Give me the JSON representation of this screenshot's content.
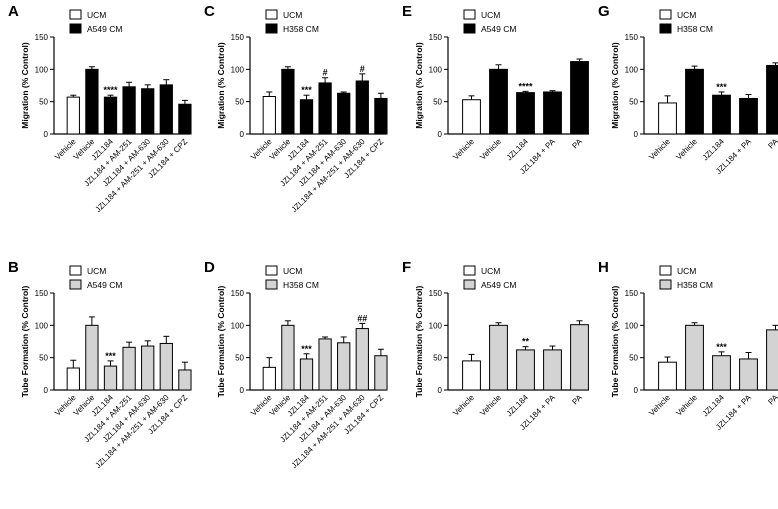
{
  "colors": {
    "ucm": "#ffffff",
    "cm_migration": "#000000",
    "cm_tube": "#d3d3d3",
    "axis": "#000000"
  },
  "chart_data": [
    {
      "panel": "A",
      "type": "bar",
      "ylabel": "Migration (% Control)",
      "ylim": [
        0,
        150
      ],
      "yticks": [
        0,
        50,
        100,
        150
      ],
      "legend": [
        "UCM",
        "A549 CM"
      ],
      "legend_position": "top-left",
      "categories": [
        "Vehicle",
        "Vehicle",
        "JZL184",
        "JZL184 + AM-251",
        "JZL184 + AM-630",
        "JZL184 + AM-251 + AM-630",
        "JZL184 + CPZ"
      ],
      "values": [
        57,
        100,
        57,
        73,
        70,
        76,
        46
      ],
      "errors": [
        3,
        4,
        3,
        7,
        6,
        8,
        6
      ],
      "groups": [
        "UCM",
        "CM",
        "CM",
        "CM",
        "CM",
        "CM",
        "CM"
      ],
      "annotations": [
        "",
        "",
        "****",
        "",
        "",
        "",
        ""
      ]
    },
    {
      "panel": "B",
      "type": "bar",
      "ylabel": "Tube Formation (% Control)",
      "ylim": [
        0,
        150
      ],
      "yticks": [
        0,
        50,
        100,
        150
      ],
      "legend": [
        "UCM",
        "A549 CM"
      ],
      "legend_position": "top-left",
      "categories": [
        "Vehicle",
        "Vehicle",
        "JZL184",
        "JZL184 + AM-251",
        "JZL184 + AM-630",
        "JZL184 + AM-251 + AM-630",
        "JZL184 + CPZ"
      ],
      "values": [
        34,
        100,
        37,
        66,
        68,
        72,
        31
      ],
      "errors": [
        12,
        13,
        8,
        8,
        8,
        11,
        12
      ],
      "groups": [
        "UCM",
        "CM",
        "CM",
        "CM",
        "CM",
        "CM",
        "CM"
      ],
      "annotations": [
        "",
        "",
        "***",
        "",
        "",
        "",
        ""
      ]
    },
    {
      "panel": "C",
      "type": "bar",
      "ylabel": "Migration (% Control)",
      "ylim": [
        0,
        150
      ],
      "yticks": [
        0,
        50,
        100,
        150
      ],
      "legend": [
        "UCM",
        "H358 CM"
      ],
      "legend_position": "top-left",
      "categories": [
        "Vehicle",
        "Vehicle",
        "JZL184",
        "JZL184 + AM-251",
        "JZL184 + AM-630",
        "JZL184 + AM-251 + AM-630",
        "JZL184 + CPZ"
      ],
      "values": [
        58,
        100,
        53,
        79,
        63,
        82,
        55
      ],
      "errors": [
        7,
        4,
        7,
        8,
        2,
        11,
        8
      ],
      "groups": [
        "UCM",
        "CM",
        "CM",
        "CM",
        "CM",
        "CM",
        "CM"
      ],
      "annotations": [
        "",
        "",
        "***",
        "#",
        "",
        "#",
        ""
      ]
    },
    {
      "panel": "D",
      "type": "bar",
      "ylabel": "Tube Formation (% Control)",
      "ylim": [
        0,
        150
      ],
      "yticks": [
        0,
        50,
        100,
        150
      ],
      "legend": [
        "UCM",
        "H358 CM"
      ],
      "legend_position": "top-left",
      "categories": [
        "Vehicle",
        "Vehicle",
        "JZL184",
        "JZL184 + AM-251",
        "JZL184 + AM-630",
        "JZL184 + AM-251 + AM-630",
        "JZL184 + CPZ"
      ],
      "values": [
        35,
        100,
        48,
        79,
        73,
        95,
        53
      ],
      "errors": [
        15,
        7,
        8,
        3,
        9,
        8,
        10
      ],
      "groups": [
        "UCM",
        "CM",
        "CM",
        "CM",
        "CM",
        "CM",
        "CM"
      ],
      "annotations": [
        "",
        "",
        "***",
        "",
        "",
        "##",
        ""
      ]
    },
    {
      "panel": "E",
      "type": "bar",
      "ylabel": "Migration (% Control)",
      "ylim": [
        0,
        150
      ],
      "yticks": [
        0,
        50,
        100,
        150
      ],
      "legend": [
        "UCM",
        "A549 CM"
      ],
      "legend_position": "top-left",
      "categories": [
        "Vehicle",
        "Vehicle",
        "JZL184",
        "JZL184 + PA",
        "PA"
      ],
      "values": [
        53,
        100,
        64,
        65,
        112
      ],
      "errors": [
        6,
        7,
        2,
        2,
        4
      ],
      "groups": [
        "UCM",
        "CM",
        "CM",
        "CM",
        "CM"
      ],
      "annotations": [
        "",
        "",
        "****",
        "",
        ""
      ]
    },
    {
      "panel": "F",
      "type": "bar",
      "ylabel": "Tube Formation (% Control)",
      "ylim": [
        0,
        150
      ],
      "yticks": [
        0,
        50,
        100,
        150
      ],
      "legend": [
        "UCM",
        "A549 CM"
      ],
      "legend_position": "top-left",
      "categories": [
        "Vehicle",
        "Vehicle",
        "JZL184",
        "JZL184 + PA",
        "PA"
      ],
      "values": [
        45,
        100,
        62,
        62,
        101
      ],
      "errors": [
        10,
        4,
        5,
        6,
        6
      ],
      "groups": [
        "UCM",
        "CM",
        "CM",
        "CM",
        "CM"
      ],
      "annotations": [
        "",
        "",
        "**",
        "",
        ""
      ]
    },
    {
      "panel": "G",
      "type": "bar",
      "ylabel": "Migration (% Control)",
      "ylim": [
        0,
        150
      ],
      "yticks": [
        0,
        50,
        100,
        150
      ],
      "legend": [
        "UCM",
        "H358 CM"
      ],
      "legend_position": "top-left",
      "categories": [
        "Vehicle",
        "Vehicle",
        "JZL184",
        "JZL184 + PA",
        "PA"
      ],
      "values": [
        48,
        100,
        60,
        55,
        106
      ],
      "errors": [
        11,
        5,
        5,
        6,
        4
      ],
      "groups": [
        "UCM",
        "CM",
        "CM",
        "CM",
        "CM"
      ],
      "annotations": [
        "",
        "",
        "***",
        "",
        ""
      ]
    },
    {
      "panel": "H",
      "type": "bar",
      "ylabel": "Tube Formation (% Control)",
      "ylim": [
        0,
        150
      ],
      "yticks": [
        0,
        50,
        100,
        150
      ],
      "legend": [
        "UCM",
        "H358 CM"
      ],
      "legend_position": "top-left",
      "categories": [
        "Vehicle",
        "Vehicle",
        "JZL184",
        "JZL184 + PA",
        "PA"
      ],
      "values": [
        43,
        100,
        53,
        48,
        93
      ],
      "errors": [
        8,
        4,
        6,
        10,
        7
      ],
      "groups": [
        "UCM",
        "CM",
        "CM",
        "CM",
        "CM"
      ],
      "annotations": [
        "",
        "",
        "***",
        "",
        ""
      ]
    }
  ]
}
